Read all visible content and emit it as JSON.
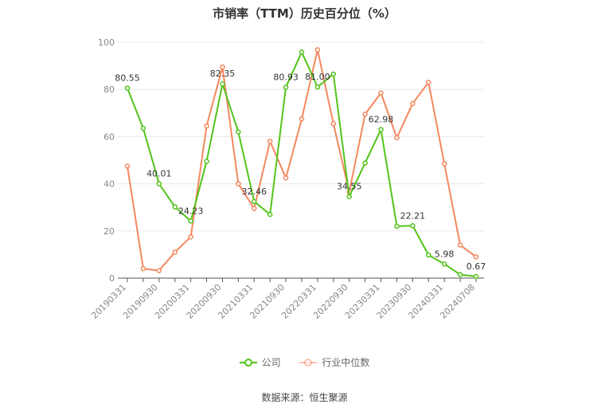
{
  "title": "市销率（TTM）历史百分位（%）",
  "source": "数据来源：恒生聚源",
  "colors": {
    "company": "#52c41a",
    "industry": "#f5875e",
    "grid": "#e8e8e8",
    "axis": "#888888"
  },
  "chart_data": {
    "type": "line",
    "xlabel": "",
    "ylabel": "",
    "ylim": [
      0,
      100
    ],
    "yticks": [
      0,
      20,
      40,
      60,
      80,
      100
    ],
    "x_tick_labels": [
      "20190331",
      "20190930",
      "20200331",
      "20200930",
      "20210331",
      "20210930",
      "20220331",
      "20220930",
      "20230331",
      "20230930",
      "20240331",
      "20240708"
    ],
    "x": [
      "20190331",
      "20190630",
      "20190930",
      "20191231",
      "20200331",
      "20200630",
      "20200930",
      "20201231",
      "20210331",
      "20210630",
      "20210930",
      "20211231",
      "20220331",
      "20220630",
      "20220930",
      "20221231",
      "20230331",
      "20230630",
      "20230930",
      "20231231",
      "20240331",
      "20240630",
      "20240708"
    ],
    "series": [
      {
        "name": "公司",
        "values": [
          80.55,
          63.5,
          40.01,
          30.2,
          24.23,
          49.5,
          82.35,
          62.0,
          32.46,
          27.0,
          80.93,
          95.8,
          81.0,
          86.5,
          34.55,
          48.8,
          62.98,
          22.0,
          22.21,
          9.8,
          5.98,
          1.5,
          0.67
        ],
        "labels": [
          "80.55",
          "",
          "40.01",
          "",
          "24.23",
          "",
          "82.35",
          "",
          "32.46",
          "",
          "80.93",
          "",
          "81.00",
          "",
          "34.55",
          "",
          "62.98",
          "",
          "22.21",
          "",
          "5.98",
          "",
          "0.67"
        ]
      },
      {
        "name": "行业中位数",
        "values": [
          47.5,
          4.0,
          3.2,
          11.0,
          17.5,
          64.5,
          89.5,
          40.0,
          29.5,
          58.0,
          42.5,
          67.5,
          96.8,
          65.5,
          36.5,
          69.5,
          78.5,
          59.5,
          74.0,
          83.0,
          48.5,
          14.0,
          9.0
        ]
      }
    ]
  }
}
